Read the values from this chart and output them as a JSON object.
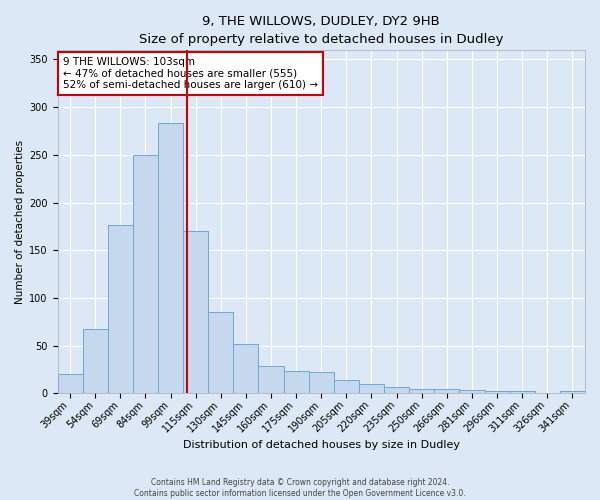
{
  "title": "9, THE WILLOWS, DUDLEY, DY2 9HB",
  "subtitle": "Size of property relative to detached houses in Dudley",
  "xlabel": "Distribution of detached houses by size in Dudley",
  "ylabel": "Number of detached properties",
  "bar_labels": [
    "39sqm",
    "54sqm",
    "69sqm",
    "84sqm",
    "99sqm",
    "115sqm",
    "130sqm",
    "145sqm",
    "160sqm",
    "175sqm",
    "190sqm",
    "205sqm",
    "220sqm",
    "235sqm",
    "250sqm",
    "266sqm",
    "281sqm",
    "296sqm",
    "311sqm",
    "326sqm",
    "341sqm"
  ],
  "bar_values": [
    20,
    67,
    176,
    250,
    283,
    170,
    85,
    52,
    29,
    23,
    22,
    14,
    10,
    7,
    5,
    5,
    3,
    2,
    2,
    0,
    2
  ],
  "bar_color": "#c5d8ee",
  "bar_edge_color": "#6aaad4",
  "vline_x_index": 4.65,
  "vline_color": "#cc0000",
  "ylim": [
    0,
    360
  ],
  "yticks": [
    0,
    50,
    100,
    150,
    200,
    250,
    300,
    350
  ],
  "annotation_title": "9 THE WILLOWS: 103sqm",
  "annotation_line1": "← 47% of detached houses are smaller (555)",
  "annotation_line2": "52% of semi-detached houses are larger (610) →",
  "footer1": "Contains HM Land Registry data © Crown copyright and database right 2024.",
  "footer2": "Contains public sector information licensed under the Open Government Licence v3.0.",
  "background_color": "#dce8f5",
  "plot_bg_color": "#dce8f5",
  "grid_color": "#ffffff",
  "title_fontsize": 9.5,
  "subtitle_fontsize": 8.5,
  "xlabel_fontsize": 8,
  "ylabel_fontsize": 7.5,
  "tick_fontsize": 7,
  "annotation_fontsize": 7.5,
  "footer_fontsize": 5.5
}
